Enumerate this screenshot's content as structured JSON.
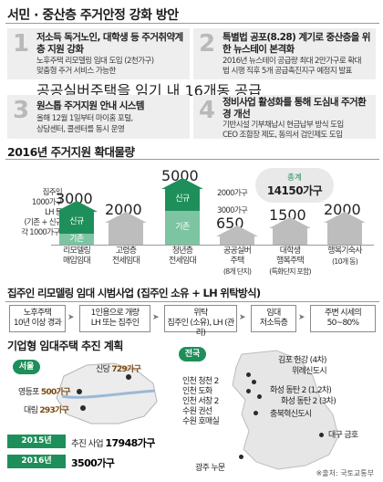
{
  "headline": "서민 · 중산층 주거안정 강화 방안",
  "cards": [
    {
      "num": "1",
      "title": "저소득 독거노인, 대학생 등 주거취약계층 지원 강화",
      "lines": [
        "노후주택 리모델링 임대 도입 (2천가구)",
        "맞춤형 주거 서비스 가능한",
        "공공실버주택을 임기 내 16개동 공급"
      ]
    },
    {
      "num": "2",
      "title": "특별법 공포(8.28) 계기로 중산층을 위한 뉴스테이 본격화",
      "lines": [
        "2016년 뉴스테이 공급량 최대 2만가구로 확대",
        "법 시행 직후 5개 공급촉진지구 예정지 발표"
      ]
    },
    {
      "num": "3",
      "title": "원스톱 주거지원 안내 시스템",
      "lines": [
        "올해 12월 1일부터 마이홈 포털,",
        "상담센터, 콜센터를 동시 운영"
      ]
    },
    {
      "num": "4",
      "title": "정비사업 활성화를 통해 도심내 주거환경 개선",
      "lines": [
        "기반시설 기부채납시 현금납부 방식 도입",
        "CEO 조합장 제도, 동의서 검인제도 도입"
      ]
    }
  ],
  "supply": {
    "title": "2016년 주거지원 확대물량",
    "left_note": [
      "집주인",
      "1000가구",
      "LH 등",
      "(기존 + 신규",
      "각 1000가구)"
    ],
    "total_label": "총계",
    "total_value": "14150가구",
    "stack_labels": {
      "top": "2000가구",
      "bottom": "3000가구"
    },
    "seg_labels": {
      "new": "신규",
      "old": "기존"
    }
  },
  "chart_data": {
    "type": "bar",
    "title": "2016년 주거지원 확대물량",
    "categories": [
      "리모델링 매입임대",
      "고령층 전세임대",
      "청년층 전세임대",
      "공공실버 주택 (8개 단지)",
      "대학생 행복주택 (특화단지 포함)",
      "행복기숙사 (10개 동)"
    ],
    "values": [
      3000,
      2000,
      5000,
      650,
      1500,
      2000
    ],
    "value_labels": [
      "3000",
      "2000",
      "5000",
      "650",
      "1500",
      "2000"
    ],
    "stacks": {
      "리모델링 매입임대": {
        "신규": 2000,
        "기존": 1000
      },
      "청년층 전세임대": {
        "신규": 2000,
        "기존": 3000
      }
    },
    "xlabels": [
      [
        "리모델링",
        "매입임대"
      ],
      [
        "고령층",
        "전세임대"
      ],
      [
        "청년층",
        "전세임대"
      ],
      [
        "공공실버",
        "주택",
        "(8개 단지)"
      ],
      [
        "대학생",
        "행복주택",
        "(특화단지 포함)"
      ],
      [
        "행복기숙사",
        "(10개 동)"
      ]
    ],
    "ylim": [
      0,
      5500
    ],
    "colors": {
      "new": "#1e8f5a",
      "old": "#7dc4a2",
      "plain": "#bdbdbd"
    }
  },
  "pilot": {
    "title": "집주인 리모델링 임대 시범사업 (집주인 소유 + LH 위탁방식)",
    "steps": [
      [
        "노후주택",
        "10년 이상 경과"
      ],
      [
        "1인용으로 개량",
        "LH 또는 집주인"
      ],
      [
        "위탁",
        "집주인 (소유), LH (관리)"
      ],
      [
        "임대",
        "저소득층"
      ],
      [
        "주변 시세의",
        "50~80%"
      ]
    ]
  },
  "corporate": {
    "title": "기업형 임대주택 추진 계획",
    "seoul_label": "서울",
    "nation_label": "전국",
    "seoul_sites": [
      {
        "name": "신당",
        "value": "729가구"
      },
      {
        "name": "영등포",
        "value": "500가구"
      },
      {
        "name": "대림",
        "value": "293가구"
      }
    ],
    "nation_sites": [
      "김포 한강 (4차)",
      "위례신도시",
      "인천 청천 2",
      "인천 도화",
      "인천 서창 2",
      "화성 동탄 2 (1,2차)",
      "수원 권선",
      "화성 동탄 2 (3차)",
      "수원 호매실",
      "충북혁신도시",
      "대구 금호",
      "광주 누문"
    ],
    "years": [
      {
        "year": "2015년",
        "prefix": "추진 사업",
        "value": "17948가구"
      },
      {
        "year": "2016년",
        "prefix": "",
        "value": "3500가구"
      }
    ],
    "source": "※출처: 국토교통부"
  }
}
